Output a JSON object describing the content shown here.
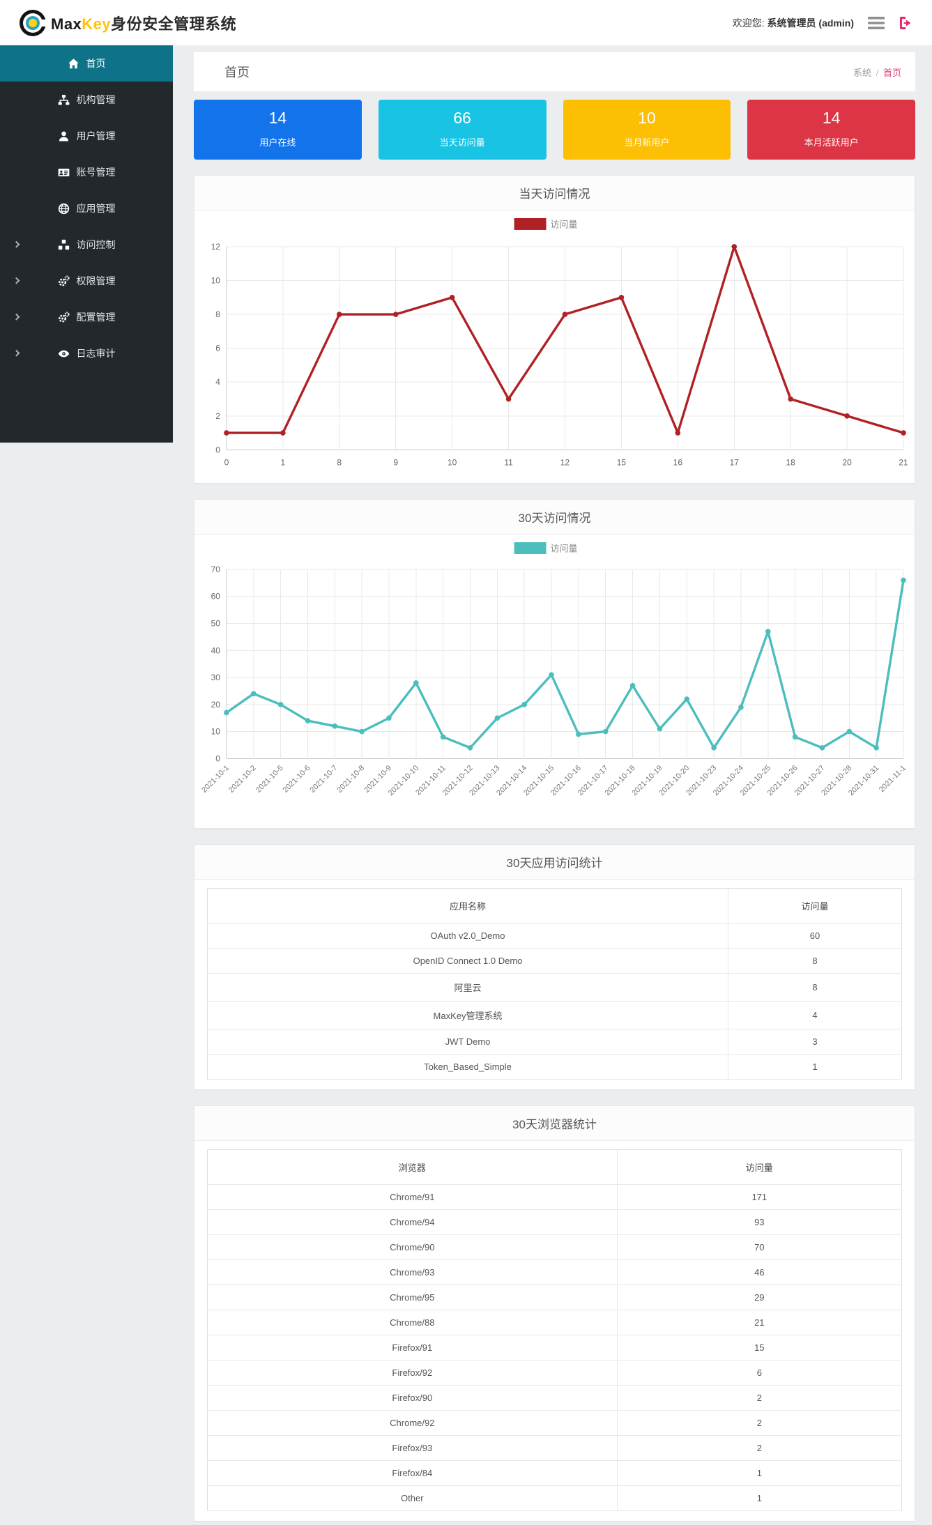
{
  "header": {
    "brand_max": "Max",
    "brand_key": "Key",
    "brand_suffix": "身份安全管理系统",
    "welcome_label": "欢迎您:",
    "user": "系统管理员 (admin)"
  },
  "sidebar": {
    "items": [
      {
        "label": "首页",
        "icon": "home-icon",
        "active": true,
        "expandable": false
      },
      {
        "label": "机构管理",
        "icon": "sitemap-icon",
        "active": false,
        "expandable": false
      },
      {
        "label": "用户管理",
        "icon": "user-icon",
        "active": false,
        "expandable": false
      },
      {
        "label": "账号管理",
        "icon": "id-card-icon",
        "active": false,
        "expandable": false
      },
      {
        "label": "应用管理",
        "icon": "globe-icon",
        "active": false,
        "expandable": false
      },
      {
        "label": "访问控制",
        "icon": "cubes-icon",
        "active": false,
        "expandable": true
      },
      {
        "label": "权限管理",
        "icon": "gears-icon",
        "active": false,
        "expandable": true
      },
      {
        "label": "配置管理",
        "icon": "gears-icon",
        "active": false,
        "expandable": true
      },
      {
        "label": "日志审计",
        "icon": "eye-icon",
        "active": false,
        "expandable": true
      }
    ]
  },
  "breadcrumb": {
    "title": "首页",
    "parent": "系统",
    "separator": "/",
    "current": "首页"
  },
  "stats": [
    {
      "value": "14",
      "label": "用户在线",
      "color": "#1273eb"
    },
    {
      "value": "66",
      "label": "当天访问量",
      "color": "#19c3e3"
    },
    {
      "value": "10",
      "label": "当月新用户",
      "color": "#fcbf04"
    },
    {
      "value": "14",
      "label": "本月活跃用户",
      "color": "#dc3545"
    }
  ],
  "chart_data": [
    {
      "type": "line",
      "title": "当天访问情况",
      "legend": "访问量",
      "legend_position": "top",
      "grid": true,
      "color": "#b02125",
      "categories": [
        "0",
        "1",
        "8",
        "9",
        "10",
        "11",
        "12",
        "15",
        "16",
        "17",
        "18",
        "20",
        "21"
      ],
      "values": [
        1,
        1,
        8,
        8,
        9,
        3,
        8,
        9,
        1,
        12,
        3,
        2,
        1
      ],
      "xlabel": "",
      "ylabel": "",
      "ylim": [
        0,
        12
      ],
      "ystep": 2
    },
    {
      "type": "line",
      "title": "30天访问情况",
      "legend": "访问量",
      "legend_position": "top",
      "grid": true,
      "color": "#4cbdbd",
      "categories": [
        "2021-10-1",
        "2021-10-2",
        "2021-10-5",
        "2021-10-6",
        "2021-10-7",
        "2021-10-8",
        "2021-10-9",
        "2021-10-10",
        "2021-10-11",
        "2021-10-12",
        "2021-10-13",
        "2021-10-14",
        "2021-10-15",
        "2021-10-16",
        "2021-10-17",
        "2021-10-18",
        "2021-10-19",
        "2021-10-20",
        "2021-10-23",
        "2021-10-24",
        "2021-10-25",
        "2021-10-26",
        "2021-10-27",
        "2021-10-28",
        "2021-10-31",
        "2021-11-1"
      ],
      "values": [
        17,
        24,
        20,
        14,
        12,
        10,
        15,
        28,
        8,
        4,
        15,
        20,
        31,
        9,
        10,
        27,
        11,
        22,
        4,
        19,
        47,
        8,
        4,
        10,
        4,
        66
      ],
      "xlabel": "",
      "ylabel": "",
      "ylim": [
        0,
        70
      ],
      "ystep": 10
    }
  ],
  "tables": [
    {
      "title": "30天应用访问统计",
      "headers": [
        "应用名称",
        "访问量"
      ],
      "rows": [
        [
          "OAuth v2.0_Demo",
          "60"
        ],
        [
          "OpenID Connect 1.0 Demo",
          "8"
        ],
        [
          "阿里云",
          "8"
        ],
        [
          "MaxKey管理系统",
          "4"
        ],
        [
          "JWT Demo",
          "3"
        ],
        [
          "Token_Based_Simple",
          "1"
        ]
      ]
    },
    {
      "title": "30天浏览器统计",
      "headers": [
        "浏览器",
        "访问量"
      ],
      "rows": [
        [
          "Chrome/91",
          "171"
        ],
        [
          "Chrome/94",
          "93"
        ],
        [
          "Chrome/90",
          "70"
        ],
        [
          "Chrome/93",
          "46"
        ],
        [
          "Chrome/95",
          "29"
        ],
        [
          "Chrome/88",
          "21"
        ],
        [
          "Firefox/91",
          "15"
        ],
        [
          "Firefox/92",
          "6"
        ],
        [
          "Firefox/90",
          "2"
        ],
        [
          "Chrome/92",
          "2"
        ],
        [
          "Firefox/93",
          "2"
        ],
        [
          "Firefox/84",
          "1"
        ],
        [
          "Other",
          "1"
        ]
      ]
    }
  ],
  "colors": {
    "sidebar_bg": "#23282c",
    "sidebar_active": "#0e7388",
    "link_pink": "#e3406e",
    "page_bg": "#ecedef",
    "grid_line": "#e9e9e9"
  }
}
